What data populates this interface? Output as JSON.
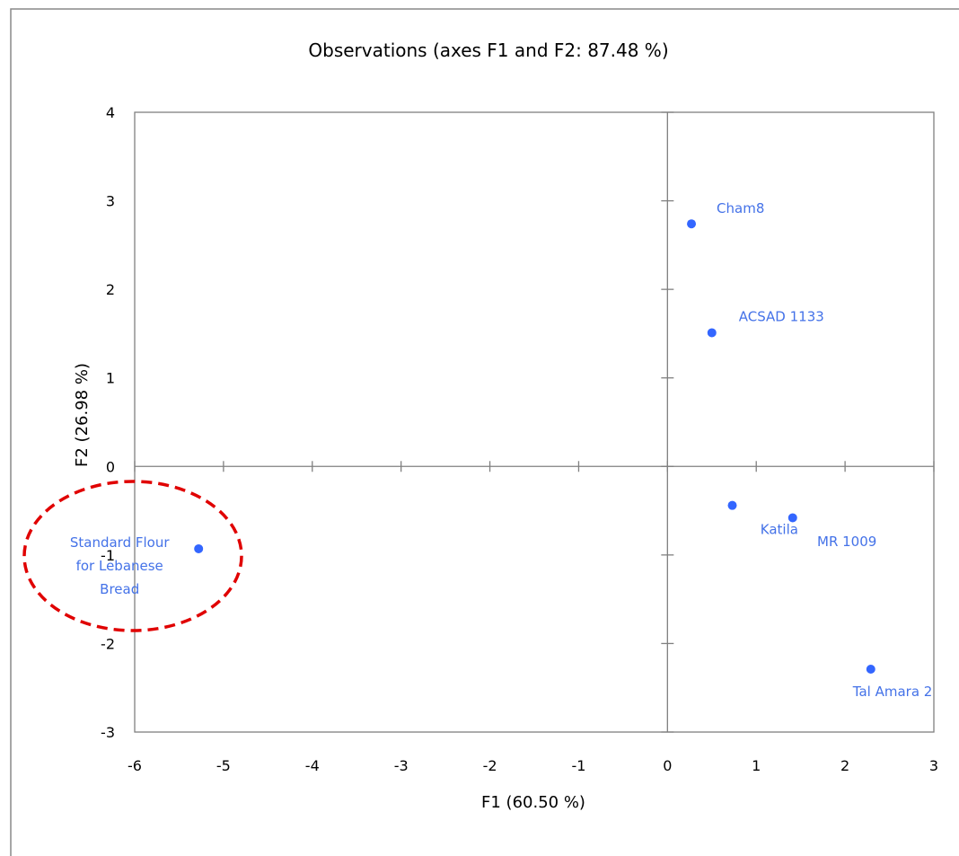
{
  "chart_data": {
    "type": "scatter",
    "title": "Observations (axes F1 and F2: 87.48 %)",
    "xlabel": "F1 (60.50 %)",
    "ylabel": "F2 (26.98 %)",
    "xlim": [
      -6,
      3
    ],
    "ylim": [
      -3,
      4
    ],
    "xticks": [
      -6,
      -5,
      -4,
      -3,
      -2,
      -1,
      0,
      1,
      2,
      3
    ],
    "yticks": [
      -3,
      -2,
      -1,
      0,
      1,
      2,
      3,
      4
    ],
    "grid": false,
    "points": [
      {
        "label": "Cham8",
        "x": 0.27,
        "y": 2.74
      },
      {
        "label": "ACSAD 1133",
        "x": 0.5,
        "y": 1.51
      },
      {
        "label": "Standard Flour for Lebanese Bread",
        "label_lines": [
          "Standard Flour",
          "for Lebanese",
          "Bread"
        ],
        "x": -5.28,
        "y": -0.93
      },
      {
        "label": "",
        "x": 0.73,
        "y": -0.44
      },
      {
        "label": "Katila",
        "x": 1.41,
        "y": -0.58
      },
      {
        "label": "MR 1009",
        "x": null,
        "y": null
      },
      {
        "label": "Tal Amara 2",
        "x": 2.29,
        "y": -2.29
      }
    ],
    "highlight": {
      "target": "Standard Flour for Lebanese Bread",
      "style": "dashed ellipse"
    }
  },
  "colors": {
    "point": "#3366ff",
    "label": "#4472e8",
    "axis": "#808080",
    "highlight": "#e00000"
  }
}
